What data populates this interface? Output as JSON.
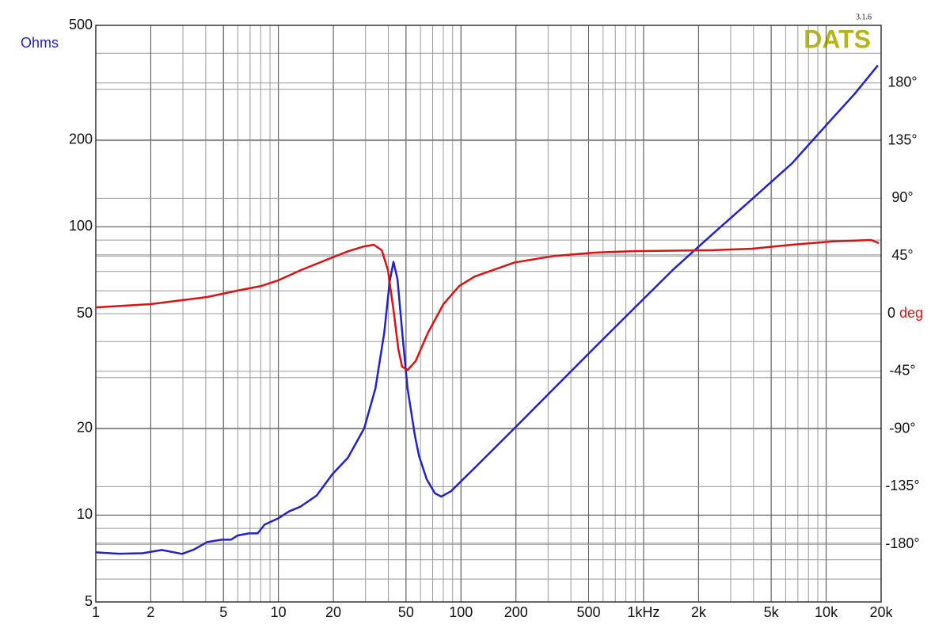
{
  "chart_data": {
    "type": "line",
    "version": "3.1.6",
    "brand": "DATS",
    "ylabel": "Ohms",
    "y2label": "deg",
    "xscale": "log",
    "yscale": "log",
    "grid": true,
    "minor_grid": true,
    "xlim": [
      1,
      20000
    ],
    "ylim": [
      5,
      500
    ],
    "y2lim": [
      -225,
      225
    ],
    "xticks": [
      1,
      2,
      5,
      10,
      20,
      50,
      100,
      200,
      500,
      {
        "value": 1000,
        "label": "1kHz"
      },
      {
        "value": 2000,
        "label": "2k"
      },
      {
        "value": 5000,
        "label": "5k"
      },
      {
        "value": 10000,
        "label": "10k"
      },
      {
        "value": 20000,
        "label": "20k"
      }
    ],
    "yticks": [
      5,
      10,
      20,
      50,
      100,
      200,
      500
    ],
    "y2ticks": [
      {
        "value": 180,
        "label": "180°"
      },
      {
        "value": 135,
        "label": "135°"
      },
      {
        "value": 90,
        "label": "90°"
      },
      {
        "value": 45,
        "label": "45°"
      },
      {
        "value": 0,
        "label": "0"
      },
      {
        "value": -45,
        "label": "-45°"
      },
      {
        "value": -90,
        "label": "-90°"
      },
      {
        "value": -135,
        "label": "-135°"
      },
      {
        "value": -180,
        "label": "-180°"
      }
    ],
    "series": [
      {
        "name": "Ohms",
        "color": "#2222cc",
        "x": [
          1,
          1.34,
          1.8,
          2.3,
          2.97,
          3.45,
          4.08,
          4.9,
          5.5,
          5.98,
          6.9,
          7.7,
          8.4,
          10,
          11.4,
          13.2,
          16.2,
          19.8,
          24,
          29.5,
          34,
          38,
          40.7,
          42.7,
          44.9,
          47.7,
          51,
          56,
          59,
          65,
          72,
          78,
          88,
          119,
          196,
          323,
          532,
          877,
          1450,
          2390,
          3940,
          6500,
          10700,
          14300,
          19200
        ],
        "values": [
          7.43,
          7.35,
          7.38,
          7.57,
          7.34,
          7.6,
          8.07,
          8.22,
          8.22,
          8.5,
          8.65,
          8.65,
          9.27,
          9.75,
          10.3,
          10.7,
          11.7,
          13.9,
          15.8,
          20,
          27.5,
          43,
          64.5,
          75.6,
          65.8,
          43,
          27.5,
          18.8,
          16,
          13.3,
          11.9,
          11.6,
          12.1,
          14.6,
          20,
          27.5,
          37.8,
          51.8,
          71,
          94.5,
          125,
          166,
          236,
          289,
          363
        ]
      },
      {
        "name": "deg",
        "color": "#dd1111",
        "axis": "y2",
        "x": [
          1,
          1.99,
          2.97,
          4.08,
          5.97,
          8.06,
          10,
          13.3,
          17.9,
          24.2,
          29.5,
          33.3,
          36.8,
          39.8,
          42.7,
          45.4,
          47.6,
          51.1,
          56.5,
          65.6,
          80.1,
          97.8,
          119,
          197,
          324,
          534,
          880,
          2390,
          3940,
          6490,
          10690,
          17600,
          19450
        ],
        "values": [
          4.9,
          7.4,
          10.5,
          13,
          18,
          21.6,
          26,
          34,
          41.4,
          48.8,
          52.5,
          53.8,
          49.5,
          34,
          3.1,
          -27.8,
          -41.4,
          -43.9,
          -37,
          -15.5,
          7.4,
          21.6,
          29,
          40,
          45,
          47.6,
          48.8,
          49.5,
          50.7,
          53.8,
          56.3,
          57.5,
          55
        ]
      }
    ]
  }
}
